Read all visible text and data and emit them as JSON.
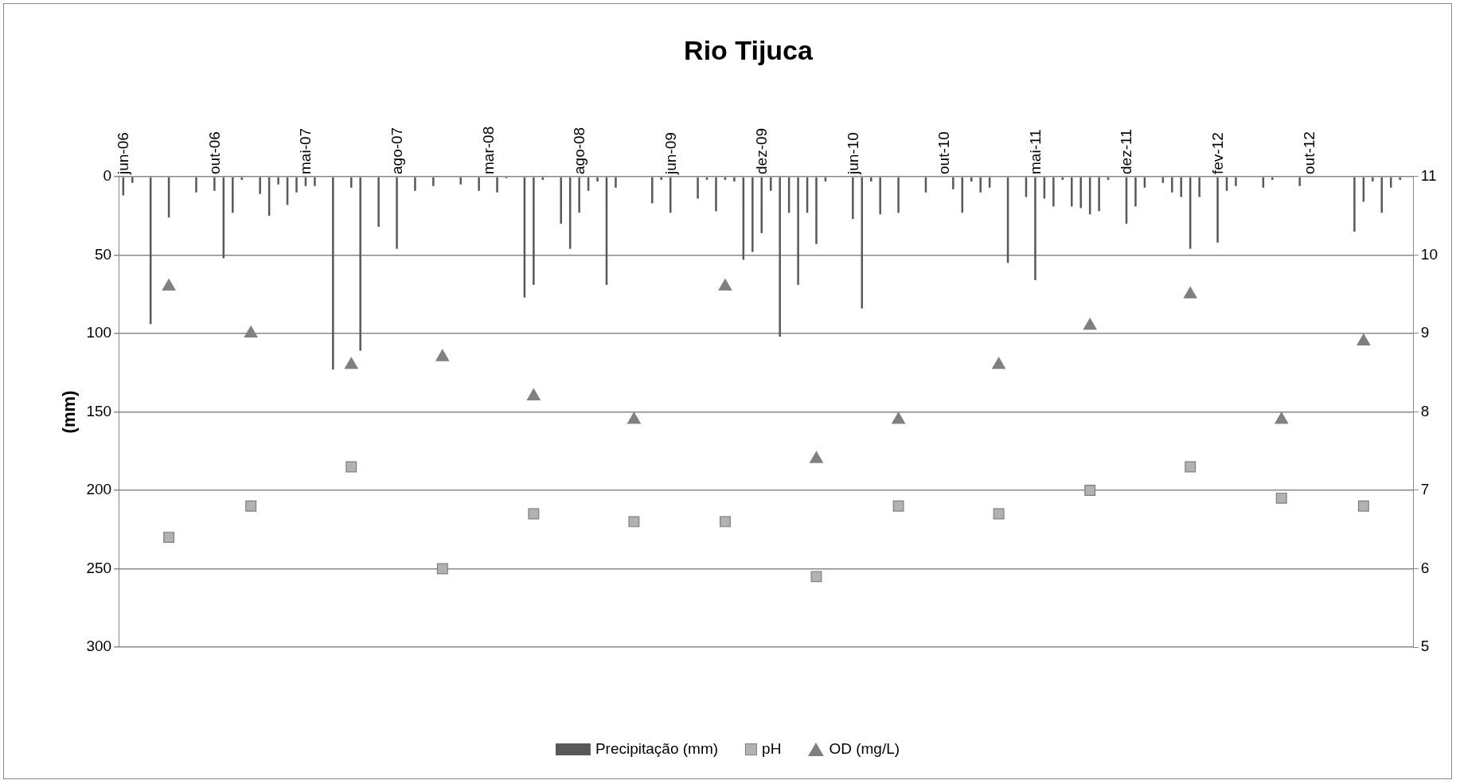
{
  "chart_data": {
    "type": "bar",
    "title": "Rio Tijuca",
    "ylabel": "(mm)",
    "categories": [
      "jun-06",
      null,
      null,
      null,
      null,
      null,
      null,
      null,
      null,
      null,
      "out-06",
      null,
      null,
      null,
      null,
      null,
      null,
      null,
      null,
      null,
      "mai-07",
      null,
      null,
      null,
      null,
      null,
      null,
      null,
      null,
      null,
      "ago-07",
      null,
      null,
      null,
      null,
      null,
      null,
      null,
      null,
      null,
      "mar-08",
      null,
      null,
      null,
      null,
      null,
      null,
      null,
      null,
      null,
      "ago-08",
      null,
      null,
      null,
      null,
      null,
      null,
      null,
      null,
      null,
      "jun-09",
      null,
      null,
      null,
      null,
      null,
      null,
      null,
      null,
      null,
      "dez-09",
      null,
      null,
      null,
      null,
      null,
      null,
      null,
      null,
      null,
      "jun-10",
      null,
      null,
      null,
      null,
      null,
      null,
      null,
      null,
      null,
      "out-10",
      null,
      null,
      null,
      null,
      null,
      null,
      null,
      null,
      null,
      "mai-11",
      null,
      null,
      null,
      null,
      null,
      null,
      null,
      null,
      null,
      "dez-11",
      null,
      null,
      null,
      null,
      null,
      null,
      null,
      null,
      null,
      "fev-12",
      null,
      null,
      null,
      null,
      null,
      null,
      null,
      null,
      null,
      "out-12",
      null,
      null,
      null,
      null,
      null,
      null,
      null,
      null,
      null,
      null,
      null
    ],
    "series": [
      {
        "name": "Precipitação (mm)",
        "color": "#595959",
        "values": [
          12,
          4,
          null,
          94,
          null,
          26,
          null,
          null,
          10,
          null,
          9,
          52,
          23,
          2,
          null,
          11,
          25,
          5,
          18,
          10,
          6,
          6,
          null,
          123,
          null,
          7,
          111,
          null,
          32,
          null,
          46,
          null,
          9,
          null,
          6,
          null,
          null,
          5,
          null,
          9,
          null,
          10,
          1,
          null,
          77,
          69,
          2,
          null,
          30,
          46,
          23,
          9,
          3,
          69,
          7,
          null,
          null,
          null,
          17,
          2,
          23,
          null,
          null,
          14,
          2,
          22,
          2,
          3,
          53,
          48,
          36,
          9,
          102,
          23,
          69,
          23,
          43,
          3,
          null,
          null,
          27,
          84,
          3,
          24,
          null,
          23,
          null,
          null,
          10,
          null,
          null,
          8,
          23,
          3,
          10,
          7,
          null,
          55,
          null,
          13,
          66,
          14,
          19,
          2,
          19,
          20,
          24,
          22,
          2,
          null,
          30,
          19,
          7,
          null,
          4,
          10,
          13,
          46,
          13,
          null,
          42,
          9,
          6,
          null,
          null,
          7,
          2,
          null,
          null,
          6,
          null,
          null,
          null,
          null,
          null,
          35,
          16,
          3,
          23,
          7,
          2,
          null
        ]
      },
      {
        "name": "pH",
        "type": "scatter",
        "axis": "y2",
        "marker": "square",
        "color": "#b2b2b2",
        "values": [
          null,
          null,
          null,
          null,
          null,
          6.4,
          null,
          null,
          null,
          null,
          null,
          null,
          null,
          null,
          6.8,
          null,
          null,
          null,
          null,
          null,
          null,
          null,
          null,
          null,
          null,
          7.3,
          null,
          null,
          null,
          null,
          null,
          null,
          null,
          null,
          null,
          6.0,
          null,
          null,
          null,
          null,
          null,
          null,
          null,
          null,
          null,
          6.7,
          null,
          null,
          null,
          null,
          null,
          null,
          null,
          null,
          null,
          null,
          6.6,
          null,
          null,
          null,
          null,
          null,
          null,
          null,
          null,
          null,
          6.6,
          null,
          null,
          null,
          null,
          null,
          null,
          null,
          null,
          null,
          5.9,
          null,
          null,
          null,
          null,
          null,
          null,
          null,
          null,
          6.8,
          null,
          null,
          null,
          null,
          null,
          null,
          null,
          null,
          null,
          null,
          6.7,
          null,
          null,
          null,
          null,
          null,
          null,
          null,
          null,
          null,
          7.0,
          null,
          null,
          null,
          null,
          null,
          null,
          null,
          null,
          null,
          null,
          7.3,
          null,
          null,
          null,
          null,
          null,
          null,
          null,
          null,
          null,
          6.9,
          null,
          null,
          null,
          null,
          null,
          null,
          null,
          null,
          6.8,
          null,
          null,
          null,
          null,
          null
        ]
      },
      {
        "name": "OD (mg/L)",
        "type": "scatter",
        "axis": "y2",
        "marker": "triangle",
        "color": "#808080",
        "values": [
          null,
          null,
          null,
          null,
          null,
          9.6,
          null,
          null,
          null,
          null,
          null,
          null,
          null,
          null,
          9.0,
          null,
          null,
          null,
          null,
          null,
          null,
          null,
          null,
          null,
          null,
          8.6,
          null,
          null,
          null,
          null,
          null,
          null,
          null,
          null,
          null,
          8.7,
          null,
          null,
          null,
          null,
          null,
          null,
          null,
          null,
          null,
          8.2,
          null,
          null,
          null,
          null,
          null,
          null,
          null,
          null,
          null,
          null,
          7.9,
          null,
          null,
          null,
          null,
          null,
          null,
          null,
          null,
          null,
          9.6,
          null,
          null,
          null,
          null,
          null,
          null,
          null,
          null,
          null,
          7.4,
          null,
          null,
          null,
          null,
          null,
          null,
          null,
          null,
          7.9,
          null,
          null,
          null,
          null,
          null,
          null,
          null,
          null,
          null,
          null,
          8.6,
          null,
          null,
          null,
          null,
          null,
          null,
          null,
          null,
          null,
          9.1,
          null,
          null,
          null,
          null,
          null,
          null,
          null,
          null,
          null,
          null,
          9.5,
          null,
          null,
          null,
          null,
          null,
          null,
          null,
          null,
          null,
          7.9,
          null,
          null,
          null,
          null,
          null,
          null,
          null,
          null,
          8.9,
          null,
          null,
          null,
          null,
          null
        ]
      }
    ],
    "ylim": [
      300,
      0
    ],
    "yticks": [
      0,
      50,
      100,
      150,
      200,
      250,
      300
    ],
    "y2lim": [
      5,
      11
    ],
    "y2ticks": [
      5,
      6,
      7,
      8,
      9,
      10,
      11
    ],
    "grid": "y",
    "legend": "bottom"
  }
}
